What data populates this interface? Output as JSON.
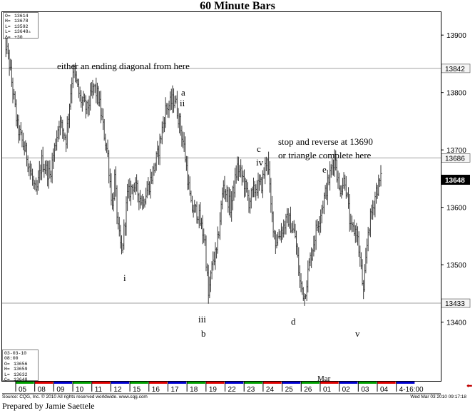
{
  "chart_data": {
    "type": "ohlc",
    "title": "60 Minute Bars",
    "ylim": [
      13320,
      13940
    ],
    "y_ticks": [
      13400,
      13500,
      13600,
      13700,
      13800,
      13900
    ],
    "x_tick_labels": [
      "05",
      "08",
      "09",
      "10",
      "11",
      "12",
      "15",
      "16",
      "17",
      "18",
      "19",
      "22",
      "23",
      "24",
      "25",
      "26",
      "01",
      "02",
      "03",
      "04",
      "4-16:00"
    ],
    "month_label": "Mar",
    "reference_lines": [
      {
        "value": 13842,
        "label": "13842"
      },
      {
        "value": 13686,
        "label": "13686"
      },
      {
        "value": 13433,
        "label": "13433"
      }
    ],
    "last_price": {
      "value": 13648,
      "label": "13648"
    },
    "wave_path": [
      [
        0,
        13905
      ],
      [
        5,
        13850
      ],
      [
        12,
        13740
      ],
      [
        20,
        13690
      ],
      [
        28,
        13620
      ],
      [
        33,
        13680
      ],
      [
        40,
        13655
      ],
      [
        48,
        13750
      ],
      [
        54,
        13720
      ],
      [
        60,
        13842
      ],
      [
        66,
        13790
      ],
      [
        72,
        13770
      ],
      [
        78,
        13810
      ],
      [
        82,
        13790
      ],
      [
        86,
        13740
      ],
      [
        90,
        13690
      ],
      [
        94,
        13600
      ],
      [
        96,
        13650
      ],
      [
        99,
        13560
      ],
      [
        102,
        13520
      ],
      [
        107,
        13620
      ],
      [
        112,
        13640
      ],
      [
        120,
        13610
      ],
      [
        126,
        13640
      ],
      [
        133,
        13690
      ],
      [
        140,
        13770
      ],
      [
        148,
        13790
      ],
      [
        156,
        13705
      ],
      [
        162,
        13600
      ],
      [
        168,
        13590
      ],
      [
        174,
        13540
      ],
      [
        177,
        13445
      ],
      [
        181,
        13510
      ],
      [
        184,
        13520
      ],
      [
        190,
        13640
      ],
      [
        196,
        13600
      ],
      [
        202,
        13670
      ],
      [
        207,
        13650
      ],
      [
        212,
        13610
      ],
      [
        218,
        13635
      ],
      [
        223,
        13640
      ],
      [
        228,
        13690
      ],
      [
        231,
        13600
      ],
      [
        235,
        13540
      ],
      [
        240,
        13560
      ],
      [
        246,
        13580
      ],
      [
        252,
        13550
      ],
      [
        256,
        13470
      ],
      [
        260,
        13445
      ],
      [
        264,
        13500
      ],
      [
        270,
        13560
      ],
      [
        275,
        13600
      ],
      [
        280,
        13640
      ],
      [
        286,
        13690
      ],
      [
        290,
        13630
      ],
      [
        295,
        13650
      ],
      [
        300,
        13560
      ],
      [
        305,
        13560
      ],
      [
        308,
        13510
      ],
      [
        311,
        13450
      ],
      [
        315,
        13560
      ],
      [
        319,
        13600
      ],
      [
        322,
        13630
      ],
      [
        326,
        13648
      ]
    ],
    "ohlc_summary": {
      "top": [
        {
          "k": "O=",
          "v": "13614"
        },
        {
          "k": "H=",
          "v": "13678"
        },
        {
          "k": "L=",
          "v": "13592"
        },
        {
          "k": "L=",
          "v": "13648▵"
        },
        {
          "k": "Δ=",
          "v": "+30"
        }
      ],
      "bottom_date": "03-03-10",
      "bottom_time": "08:00",
      "bottom": [
        {
          "k": "O=",
          "v": "13656"
        },
        {
          "k": "H=",
          "v": "13659"
        },
        {
          "k": "L=",
          "v": "13632"
        },
        {
          "k": "C=",
          "v": "13648"
        }
      ]
    },
    "annotations": [
      {
        "id": "text-ending-diagonal",
        "text": "either an ending diagonal from here"
      },
      {
        "id": "text-stop-reverse",
        "text": "stop and reverse at 13690"
      },
      {
        "id": "text-triangle",
        "text": "or triangle complete here"
      },
      {
        "id": "label-a",
        "text": "a"
      },
      {
        "id": "label-ii",
        "text": "ii"
      },
      {
        "id": "label-i",
        "text": "i"
      },
      {
        "id": "label-iii",
        "text": "iii"
      },
      {
        "id": "label-b",
        "text": "b"
      },
      {
        "id": "label-c",
        "text": "c"
      },
      {
        "id": "label-iv",
        "text": "iv"
      },
      {
        "id": "label-d",
        "text": "d"
      },
      {
        "id": "label-e",
        "text": "e"
      },
      {
        "id": "label-v",
        "text": "v"
      }
    ]
  },
  "footer": {
    "source": "Source: CQG, Inc. © 2010 All rights reserved worldwide. www.cqg.com",
    "date": "Wed Mar 03 2010 09:17:18",
    "prepared_by": "Prepared by Jamie Saettele"
  },
  "colors": {
    "bars": "#3a3a3a",
    "reference_line": "#a0a0a0",
    "last_price_box": "#000000",
    "axis_strip_green": "#00a000",
    "axis_strip_red": "#e00000",
    "axis_strip_blue": "#0000d0"
  }
}
